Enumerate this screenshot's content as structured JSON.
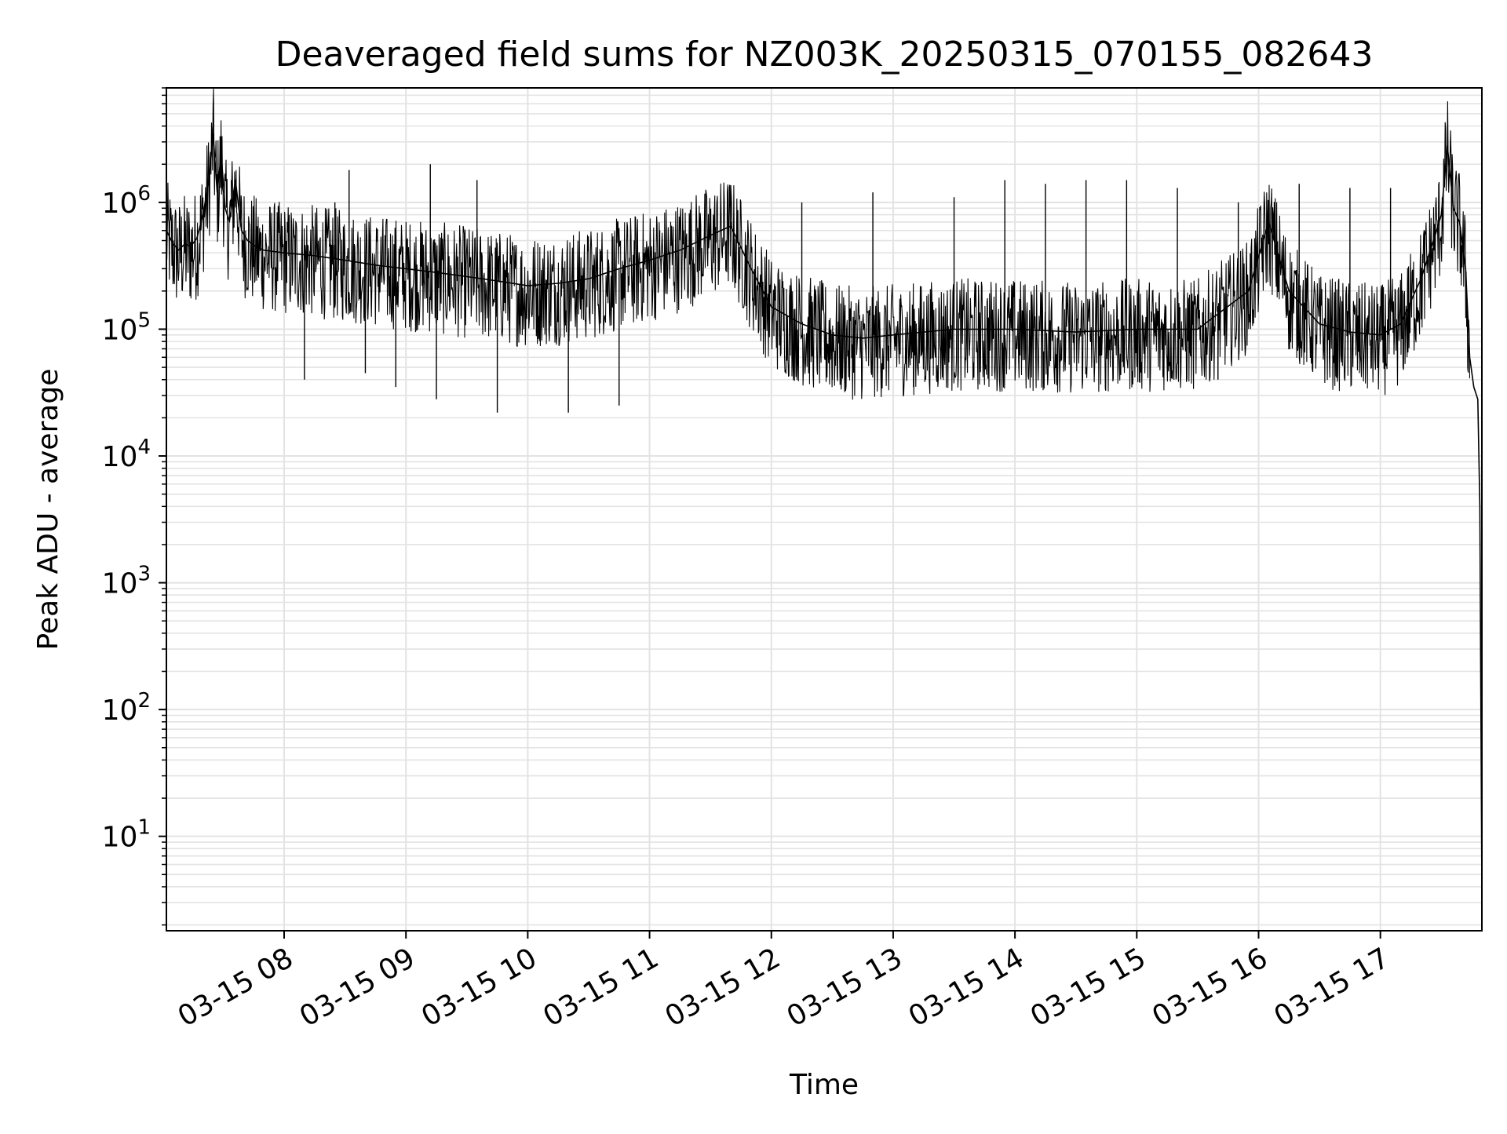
{
  "chart_data": {
    "type": "line",
    "title": "Deaveraged field sums for NZ003K_20250315_070155_082643",
    "xlabel": "Time",
    "ylabel": "Peak ADU - average",
    "yscale": "log",
    "ylim": [
      1.8,
      8000000
    ],
    "xlim": [
      "2025-03-15 07:02",
      "2025-03-15 17:50"
    ],
    "grid": true,
    "legend": "none",
    "x_tick_labels": [
      "03-15 08",
      "03-15 09",
      "03-15 10",
      "03-15 11",
      "03-15 12",
      "03-15 13",
      "03-15 14",
      "03-15 15",
      "03-15 16",
      "03-15 17"
    ],
    "y_tick_labels": [
      {
        "base": "10",
        "exp": "1"
      },
      {
        "base": "10",
        "exp": "2"
      },
      {
        "base": "10",
        "exp": "3"
      },
      {
        "base": "10",
        "exp": "4"
      },
      {
        "base": "10",
        "exp": "5"
      },
      {
        "base": "10",
        "exp": "6"
      }
    ],
    "series": [
      {
        "color": "#000000",
        "x": [
          "2025-03-15 07:02",
          "2025-03-15 07:05",
          "2025-03-15 07:08",
          "2025-03-15 07:11",
          "2025-03-15 07:14",
          "2025-03-15 07:17",
          "2025-03-15 07:20",
          "2025-03-15 07:23",
          "2025-03-15 07:25",
          "2025-03-15 07:27",
          "2025-03-15 07:29",
          "2025-03-15 07:31",
          "2025-03-15 07:33",
          "2025-03-15 07:36",
          "2025-03-15 07:39",
          "2025-03-15 07:42",
          "2025-03-15 07:46",
          "2025-03-15 07:50",
          "2025-03-15 08:00",
          "2025-03-15 08:15",
          "2025-03-15 08:30",
          "2025-03-15 08:45",
          "2025-03-15 09:00",
          "2025-03-15 09:15",
          "2025-03-15 09:30",
          "2025-03-15 09:45",
          "2025-03-15 10:00",
          "2025-03-15 10:15",
          "2025-03-15 10:30",
          "2025-03-15 10:45",
          "2025-03-15 11:00",
          "2025-03-15 11:15",
          "2025-03-15 11:30",
          "2025-03-15 11:40",
          "2025-03-15 11:50",
          "2025-03-15 12:00",
          "2025-03-15 12:15",
          "2025-03-15 12:30",
          "2025-03-15 12:45",
          "2025-03-15 13:00",
          "2025-03-15 13:30",
          "2025-03-15 14:00",
          "2025-03-15 14:30",
          "2025-03-15 15:00",
          "2025-03-15 15:30",
          "2025-03-15 15:55",
          "2025-03-15 16:05",
          "2025-03-15 16:15",
          "2025-03-15 16:30",
          "2025-03-15 16:45",
          "2025-03-15 17:00",
          "2025-03-15 17:10",
          "2025-03-15 17:20",
          "2025-03-15 17:27",
          "2025-03-15 17:30",
          "2025-03-15 17:33",
          "2025-03-15 17:36",
          "2025-03-15 17:39",
          "2025-03-15 17:42",
          "2025-03-15 17:44",
          "2025-03-15 17:46",
          "2025-03-15 17:48",
          "2025-03-15 17:49",
          "2025-03-15 17:50"
        ],
        "y": [
          600000,
          480000,
          420000,
          470000,
          450000,
          520000,
          800000,
          1500000,
          3500000,
          1200000,
          2400000,
          900000,
          700000,
          1500000,
          600000,
          500000,
          450000,
          420000,
          400000,
          380000,
          350000,
          320000,
          300000,
          280000,
          260000,
          240000,
          220000,
          230000,
          250000,
          300000,
          350000,
          420000,
          550000,
          650000,
          300000,
          150000,
          110000,
          90000,
          85000,
          90000,
          100000,
          100000,
          95000,
          100000,
          100000,
          200000,
          700000,
          200000,
          110000,
          95000,
          90000,
          110000,
          250000,
          550000,
          800000,
          2800000,
          900000,
          700000,
          300000,
          60000,
          35000,
          28000,
          4000,
          3.5
        ]
      }
    ],
    "spikes": [
      {
        "x": "2025-03-15 07:34",
        "y": 1500000
      },
      {
        "x": "2025-03-15 08:10",
        "y": 40000
      },
      {
        "x": "2025-03-15 08:25",
        "y": 1000000
      },
      {
        "x": "2025-03-15 08:40",
        "y": 45000
      },
      {
        "x": "2025-03-15 08:32",
        "y": 1800000
      },
      {
        "x": "2025-03-15 08:55",
        "y": 35000
      },
      {
        "x": "2025-03-15 09:12",
        "y": 2000000
      },
      {
        "x": "2025-03-15 09:15",
        "y": 28000
      },
      {
        "x": "2025-03-15 09:35",
        "y": 1500000
      },
      {
        "x": "2025-03-15 09:45",
        "y": 22000
      },
      {
        "x": "2025-03-15 10:20",
        "y": 22000
      },
      {
        "x": "2025-03-15 10:45",
        "y": 25000
      },
      {
        "x": "2025-03-15 11:05",
        "y": 600000
      },
      {
        "x": "2025-03-15 11:40",
        "y": 700000
      },
      {
        "x": "2025-03-15 12:15",
        "y": 1000000
      },
      {
        "x": "2025-03-15 12:30",
        "y": 40000
      },
      {
        "x": "2025-03-15 12:50",
        "y": 1200000
      },
      {
        "x": "2025-03-15 13:10",
        "y": 35000
      },
      {
        "x": "2025-03-15 13:30",
        "y": 1100000
      },
      {
        "x": "2025-03-15 13:55",
        "y": 1500000
      },
      {
        "x": "2025-03-15 14:15",
        "y": 1400000
      },
      {
        "x": "2025-03-15 14:35",
        "y": 1500000
      },
      {
        "x": "2025-03-15 14:55",
        "y": 1500000
      },
      {
        "x": "2025-03-15 15:20",
        "y": 1300000
      },
      {
        "x": "2025-03-15 15:40",
        "y": 40000
      },
      {
        "x": "2025-03-15 15:50",
        "y": 1000000
      },
      {
        "x": "2025-03-15 16:20",
        "y": 1400000
      },
      {
        "x": "2025-03-15 16:45",
        "y": 1300000
      },
      {
        "x": "2025-03-15 17:05",
        "y": 1300000
      }
    ]
  }
}
